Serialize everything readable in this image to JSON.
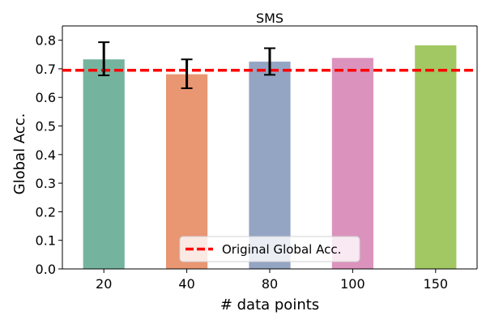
{
  "chart_data": {
    "type": "bar",
    "title": "SMS",
    "xlabel": "# data points",
    "ylabel": "Global Acc.",
    "categories": [
      "20",
      "40",
      "80",
      "100",
      "150"
    ],
    "values": [
      0.733,
      0.681,
      0.725,
      0.738,
      0.782
    ],
    "error": [
      {
        "low": 0.677,
        "high": 0.793
      },
      {
        "low": 0.632,
        "high": 0.733
      },
      {
        "low": 0.679,
        "high": 0.772
      },
      null,
      null
    ],
    "colors": [
      "#74b49f",
      "#e99673",
      "#94a4c3",
      "#db93bd",
      "#a1c863"
    ],
    "ylim": [
      0,
      0.85
    ],
    "yticks": [
      "0.0",
      "0.1",
      "0.2",
      "0.3",
      "0.4",
      "0.5",
      "0.6",
      "0.7",
      "0.8"
    ],
    "reference_line": {
      "value": 0.695,
      "label": "Original Global Acc.",
      "color": "#ff0000",
      "style": "dashed"
    },
    "grid": false,
    "legend": {
      "placement": "bottom-center",
      "entries": [
        "Original Global Acc."
      ]
    }
  }
}
